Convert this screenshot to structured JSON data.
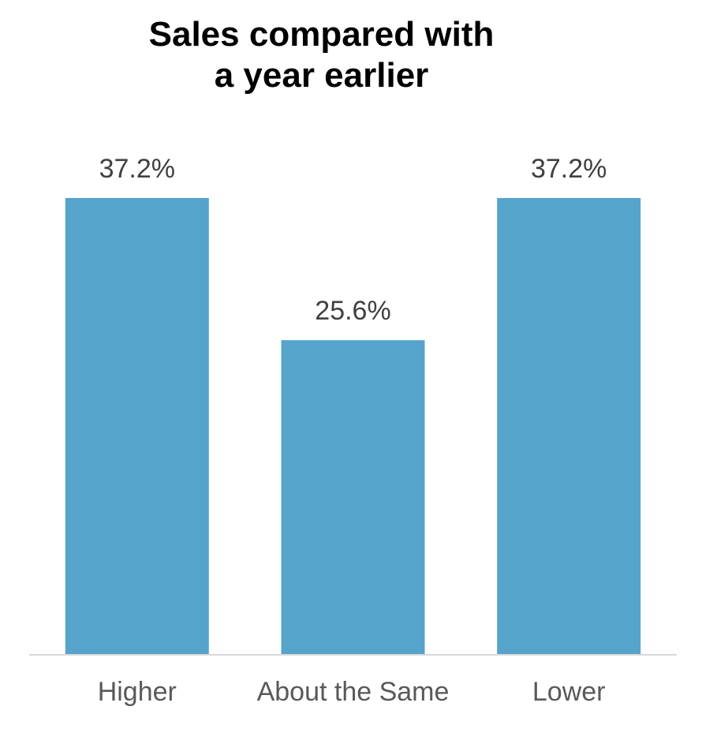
{
  "chart_data": {
    "type": "bar",
    "title_lines": [
      "Sales compared with",
      "a year earlier"
    ],
    "categories": [
      "Higher",
      "About the Same",
      "Lower"
    ],
    "values": [
      37.2,
      25.6,
      37.2
    ],
    "value_labels": [
      "37.2%",
      "25.6%",
      "37.2%"
    ],
    "ylim": [
      0,
      37.2
    ],
    "grid": false,
    "legend": "none",
    "bar_color": "#56A3CC",
    "axis_color": "#D9D9D9"
  }
}
